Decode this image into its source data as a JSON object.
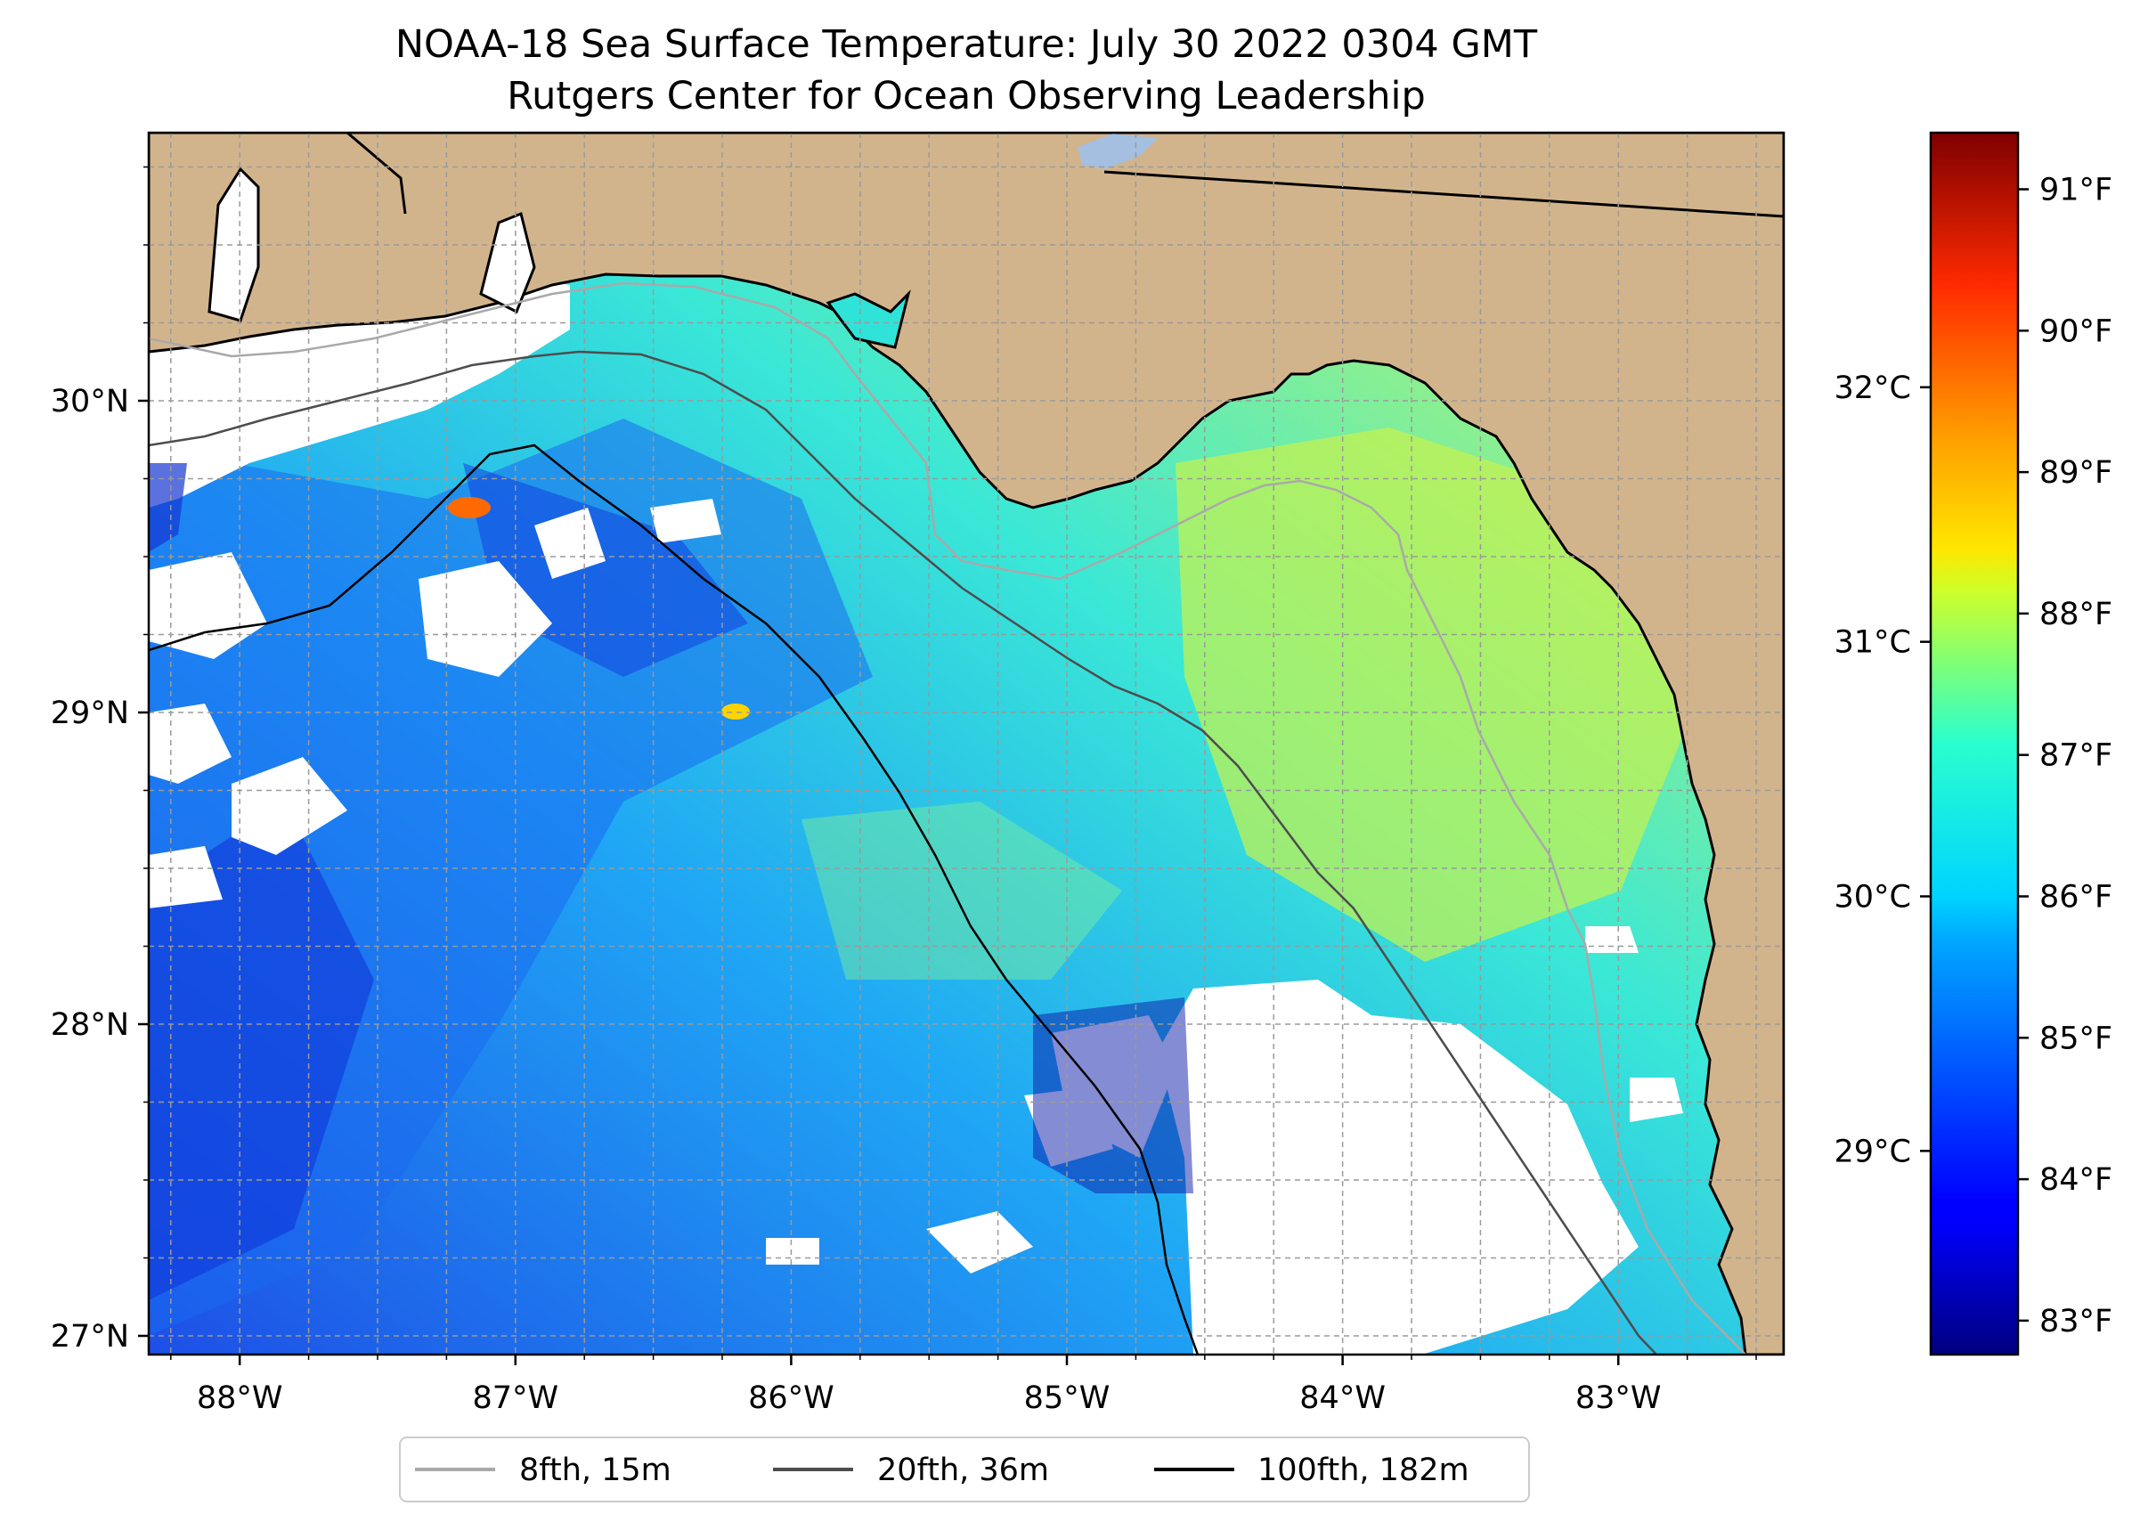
{
  "title": {
    "line1": "NOAA-18 Sea Surface Temperature: July 30 2022 0304 GMT",
    "line2": "Rutgers Center for Ocean Observing Leadership"
  },
  "map": {
    "lon_range": [
      -88.33,
      -82.4
    ],
    "lat_range": [
      26.94,
      30.86
    ],
    "lon_ticks": [
      {
        "value": -88,
        "label": "88°W"
      },
      {
        "value": -87,
        "label": "87°W"
      },
      {
        "value": -86,
        "label": "86°W"
      },
      {
        "value": -85,
        "label": "85°W"
      },
      {
        "value": -84,
        "label": "84°W"
      },
      {
        "value": -83,
        "label": "83°W"
      }
    ],
    "lat_ticks": [
      {
        "value": 30,
        "label": "30°N"
      },
      {
        "value": 29,
        "label": "29°N"
      },
      {
        "value": 28,
        "label": "28°N"
      },
      {
        "value": 27,
        "label": "27°N"
      }
    ],
    "gridlines": "dashed",
    "colors": {
      "land": "#d2b48c",
      "no_data": "#ffffff",
      "lake": "#a4bfe0"
    }
  },
  "legend": {
    "placement": "bottom-center",
    "entries": [
      {
        "label": "8fth, 15m",
        "color": "#a9a9a9"
      },
      {
        "label": "20fth, 36m",
        "color": "#4d4d4d"
      },
      {
        "label": "100fth, 182m",
        "color": "#000000"
      }
    ]
  },
  "colorbar": {
    "colormap": "jet",
    "celsius_range": [
      28.2,
      33.0
    ],
    "celsius_ticks": [
      {
        "value": 29,
        "label": "29°C"
      },
      {
        "value": 30,
        "label": "30°C"
      },
      {
        "value": 31,
        "label": "31°C"
      },
      {
        "value": 32,
        "label": "32°C"
      }
    ],
    "fahrenheit_ticks": [
      {
        "value": 83,
        "label": "83°F"
      },
      {
        "value": 84,
        "label": "84°F"
      },
      {
        "value": 85,
        "label": "85°F"
      },
      {
        "value": 86,
        "label": "86°F"
      },
      {
        "value": 87,
        "label": "87°F"
      },
      {
        "value": 88,
        "label": "88°F"
      },
      {
        "value": 89,
        "label": "89°F"
      },
      {
        "value": 90,
        "label": "90°F"
      },
      {
        "value": 91,
        "label": "91°F"
      }
    ]
  }
}
